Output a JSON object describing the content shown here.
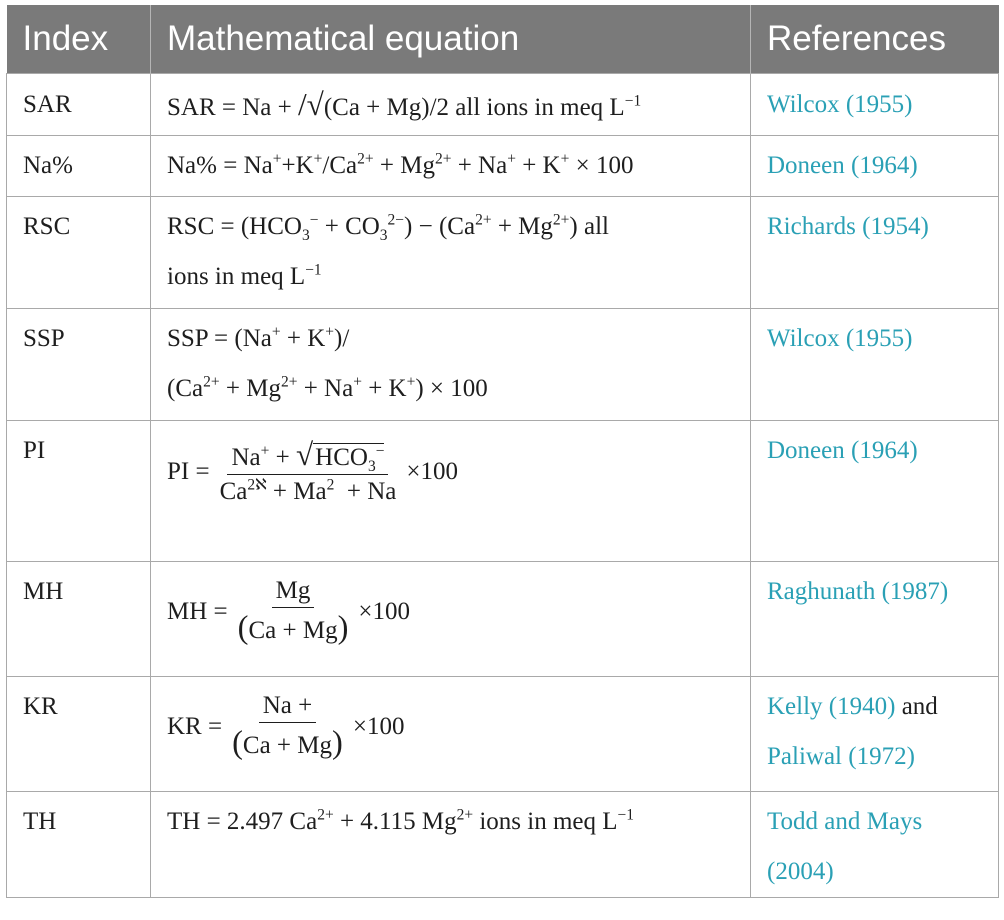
{
  "headers": [
    "Index",
    "Mathematical equation",
    "References"
  ],
  "rows": [
    {
      "index": "SAR",
      "equation": {
        "lhs": "SAR = Na + ",
        "slash": "/",
        "rad": "√",
        "rest": "(Ca + Mg)/2 all ions in meq L",
        "sup": "−1"
      },
      "refs": [
        "Wilcox (1955)"
      ]
    },
    {
      "index": "Na%",
      "refs": [
        "Doneen (1964)"
      ]
    },
    {
      "index": "RSC",
      "refs": [
        "Richards (1954)"
      ]
    },
    {
      "index": "SSP",
      "refs": [
        "Wilcox (1955)"
      ]
    },
    {
      "index": "PI",
      "equation": {
        "lhs": "PI =",
        "num_a": "Na",
        "num_a_sup": "+",
        "num_plus": " + ",
        "num_rad": "√",
        "num_b": "HCO",
        "num_b_sub": "3",
        "num_b_sup": "−",
        "den_a": "Ca",
        "den_a_sup": "2ℵ",
        "den_b": " + Ma",
        "den_b_sup": "2",
        "den_c": "  + Na",
        "times": "×100"
      },
      "refs": [
        "Doneen (1964)"
      ]
    },
    {
      "index": "MH",
      "equation": {
        "lhs": "MH =",
        "num": "Mg",
        "den_open": "(",
        "den": "Ca + Mg",
        "den_close": ")",
        "times": "×100"
      },
      "refs": [
        "Raghunath (1987)"
      ]
    },
    {
      "index": "KR",
      "equation": {
        "lhs": "KR =",
        "num": "Na +",
        "den_open": "(",
        "den": "Ca + Mg",
        "den_close": ")",
        "times": "×100"
      },
      "refs": [
        "Kelly (1940)",
        "Paliwal (1972)"
      ],
      "ref_join": " and"
    },
    {
      "index": "TH",
      "refs": [
        "Todd and Mays",
        "(2004)"
      ]
    }
  ]
}
